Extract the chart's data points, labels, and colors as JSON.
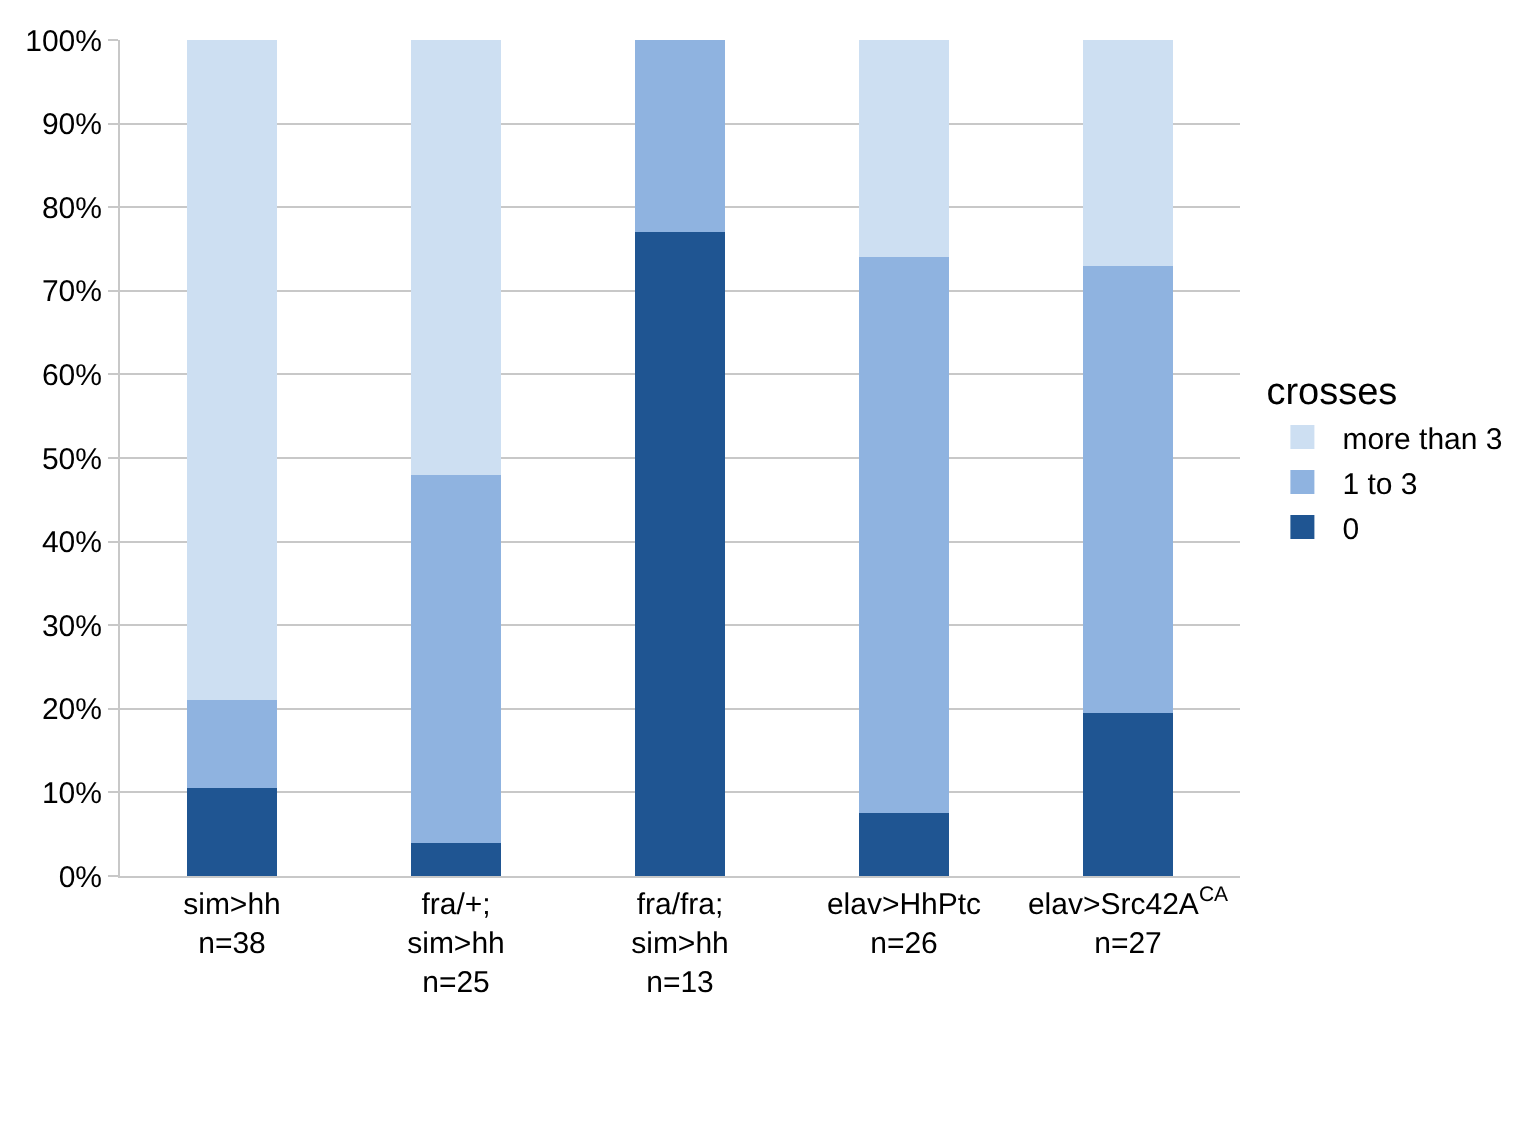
{
  "chart_data": {
    "type": "bar",
    "stacked": true,
    "categories": [
      "sim>hh\nn=38",
      "fra/+;\nsim>hh\nn=25",
      "fra/fra;\nsim>hh\nn=13",
      "elav>HhPtc\nn=26",
      "elav>Src42A$^{CA}$\nn=27"
    ],
    "series": [
      {
        "name": "0",
        "color": "#1f5592",
        "values": [
          10.5,
          4,
          77,
          7.5,
          19.5
        ]
      },
      {
        "name": "1 to 3",
        "color": "#8fb3e0",
        "values": [
          10.5,
          44,
          23,
          66.5,
          53.5
        ]
      },
      {
        "name": "more than 3",
        "color": "#cddff2",
        "values": [
          79,
          52,
          0,
          26,
          27
        ]
      }
    ],
    "legend_title": "crosses",
    "legend": "right",
    "ylim": [
      0,
      100
    ],
    "yticks": [
      {
        "value": 0,
        "label": "0%"
      },
      {
        "value": 10,
        "label": "10%"
      },
      {
        "value": 20,
        "label": "20%"
      },
      {
        "value": 30,
        "label": "30%"
      },
      {
        "value": 40,
        "label": "40%"
      },
      {
        "value": 50,
        "label": "50%"
      },
      {
        "value": 60,
        "label": "60%"
      },
      {
        "value": 70,
        "label": "70%"
      },
      {
        "value": 80,
        "label": "80%"
      },
      {
        "value": 90,
        "label": "90%"
      },
      {
        "value": 100,
        "label": "100%"
      }
    ],
    "grid": "y"
  }
}
